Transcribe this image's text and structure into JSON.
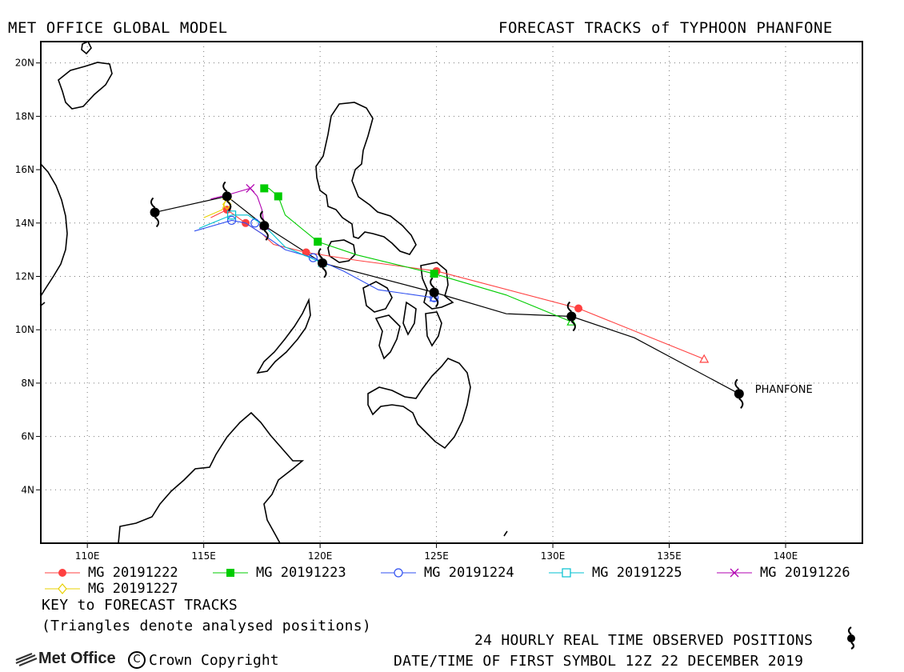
{
  "header": {
    "left_title": "MET OFFICE GLOBAL MODEL",
    "right_title": "FORECAST TRACKS of TYPHOON PHANFONE"
  },
  "map": {
    "lon_range": [
      108,
      143.3
    ],
    "lat_range": [
      2,
      20.8
    ],
    "lon_ticks": [
      {
        "v": 110,
        "label": "110E"
      },
      {
        "v": 115,
        "label": "115E"
      },
      {
        "v": 120,
        "label": "120E"
      },
      {
        "v": 125,
        "label": "125E"
      },
      {
        "v": 130,
        "label": "130E"
      },
      {
        "v": 135,
        "label": "135E"
      },
      {
        "v": 140,
        "label": "140E"
      }
    ],
    "lat_ticks": [
      {
        "v": 4,
        "label": "4N"
      },
      {
        "v": 6,
        "label": "6N"
      },
      {
        "v": 8,
        "label": "8N"
      },
      {
        "v": 10,
        "label": "10N"
      },
      {
        "v": 12,
        "label": "12N"
      },
      {
        "v": 14,
        "label": "14N"
      },
      {
        "v": 16,
        "label": "16N"
      },
      {
        "v": 18,
        "label": "18N"
      },
      {
        "v": 20,
        "label": "20N"
      }
    ],
    "grid": "dotted",
    "storm_label": "PHANFONE",
    "observed_track": {
      "color": "#000000",
      "path": [
        [
          138.0,
          7.6
        ],
        [
          133.5,
          9.7
        ],
        [
          130.8,
          10.5
        ],
        [
          128.0,
          10.6
        ],
        [
          124.9,
          11.4
        ],
        [
          120.1,
          12.5
        ],
        [
          117.6,
          13.9
        ],
        [
          116.0,
          15.0
        ],
        [
          112.9,
          14.4
        ]
      ],
      "symbols": [
        [
          138.0,
          7.6
        ],
        [
          130.8,
          10.5
        ],
        [
          124.9,
          11.4
        ],
        [
          120.1,
          12.5
        ],
        [
          117.6,
          13.9
        ],
        [
          116.0,
          15.0
        ],
        [
          112.9,
          14.4
        ]
      ]
    },
    "forecast_tracks": [
      {
        "name": "MG 20191222",
        "color": "#ff4040",
        "marker": "filled-circle",
        "path": [
          [
            136.5,
            8.9
          ],
          [
            131.1,
            10.8
          ],
          [
            125.0,
            12.2
          ],
          [
            121.6,
            12.6
          ],
          [
            119.4,
            12.9
          ],
          [
            118.0,
            13.2
          ],
          [
            117.5,
            13.6
          ],
          [
            116.8,
            14.0
          ],
          [
            116.0,
            14.5
          ],
          [
            115.3,
            14.2
          ]
        ],
        "markers": [
          [
            131.1,
            10.8
          ],
          [
            125.0,
            12.2
          ],
          [
            119.4,
            12.9
          ],
          [
            116.8,
            14.0
          ],
          [
            116.0,
            14.5
          ]
        ],
        "analysed": [
          136.5,
          8.9
        ]
      },
      {
        "name": "MG 20191223",
        "color": "#00cc00",
        "marker": "filled-square",
        "path": [
          [
            130.8,
            10.3
          ],
          [
            128.0,
            11.3
          ],
          [
            124.9,
            12.1
          ],
          [
            121.6,
            12.8
          ],
          [
            119.9,
            13.3
          ],
          [
            118.5,
            14.3
          ],
          [
            118.2,
            15.0
          ],
          [
            117.8,
            15.3
          ],
          [
            117.5,
            15.3
          ]
        ],
        "markers": [
          [
            124.9,
            12.1
          ],
          [
            119.9,
            13.3
          ],
          [
            118.2,
            15.0
          ],
          [
            117.6,
            15.3
          ]
        ],
        "analysed": [
          130.8,
          10.3
        ]
      },
      {
        "name": "MG 20191224",
        "color": "#3050f0",
        "marker": "open-circle",
        "path": [
          [
            124.9,
            11.2
          ],
          [
            122.5,
            11.5
          ],
          [
            121.0,
            12.2
          ],
          [
            119.7,
            12.7
          ],
          [
            118.5,
            13.0
          ],
          [
            117.5,
            13.6
          ],
          [
            116.8,
            14.0
          ],
          [
            116.2,
            14.1
          ],
          [
            114.6,
            13.7
          ]
        ],
        "markers": [
          [
            124.9,
            11.2
          ],
          [
            119.7,
            12.7
          ],
          [
            117.2,
            14.0
          ],
          [
            116.2,
            14.1
          ]
        ],
        "analysed": [
          124.9,
          11.2
        ]
      },
      {
        "name": "MG 20191225",
        "color": "#00c0d0",
        "marker": "open-square",
        "path": [
          [
            120.1,
            12.5
          ],
          [
            118.5,
            13.1
          ],
          [
            117.6,
            13.9
          ],
          [
            116.9,
            14.3
          ],
          [
            116.2,
            14.3
          ],
          [
            114.8,
            13.8
          ]
        ],
        "markers": [
          [
            116.2,
            14.3
          ]
        ],
        "analysed": [
          120.1,
          12.5
        ]
      },
      {
        "name": "MG 20191226",
        "color": "#b000b0",
        "marker": "x",
        "path": [
          [
            117.6,
            13.9
          ],
          [
            117.5,
            14.5
          ],
          [
            117.3,
            15.0
          ],
          [
            117.0,
            15.3
          ],
          [
            116.2,
            15.1
          ],
          [
            115.3,
            14.9
          ]
        ],
        "markers": [
          [
            117.0,
            15.3
          ]
        ],
        "analysed": [
          117.6,
          13.9
        ]
      },
      {
        "name": "MG 20191227",
        "color": "#e8d000",
        "marker": "diamond",
        "path": [
          [
            116.0,
            15.0
          ],
          [
            115.8,
            14.5
          ],
          [
            115.0,
            14.2
          ]
        ],
        "markers": [
          [
            116.0,
            14.7
          ]
        ],
        "analysed": [
          116.0,
          15.0
        ]
      }
    ]
  },
  "footer": {
    "key_title": "KEY to FORECAST TRACKS",
    "key_note": "(Triangles denote analysed positions)",
    "observed_note": "24 HOURLY REAL TIME OBSERVED POSITIONS",
    "datetime_note": "DATE/TIME OF FIRST SYMBOL 12Z 22 DECEMBER 2019",
    "logo_text": "Met Office",
    "copyright": "Crown Copyright"
  }
}
